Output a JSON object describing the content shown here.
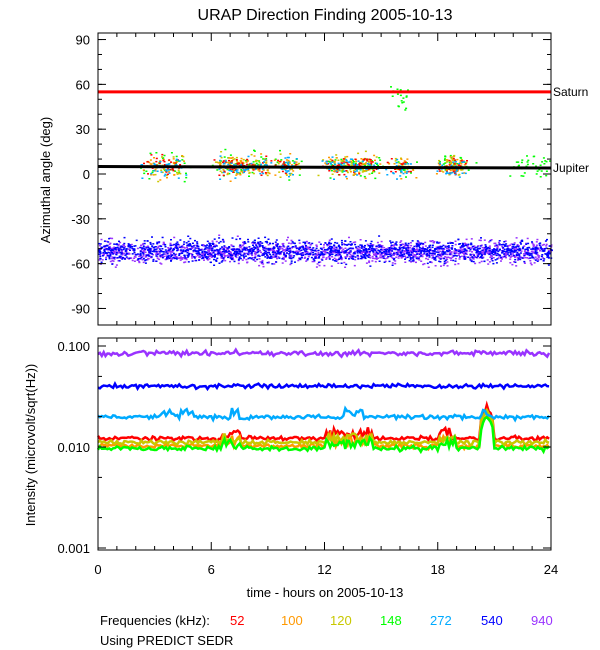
{
  "chart_data": [
    {
      "type": "scatter",
      "title": "URAP Direction Finding  2005-10-13",
      "xlabel": "",
      "ylabel": "Azimuthal angle (deg)",
      "xlim": [
        0,
        24
      ],
      "ylim": [
        -95,
        95
      ],
      "yticks": [
        "90",
        "60",
        "30",
        "0",
        "-30",
        "-60",
        "-90"
      ],
      "ytick_values": [
        90,
        60,
        30,
        0,
        -30,
        -60,
        -90
      ],
      "reference_lines": [
        {
          "name": "Saturn",
          "value_start": 55,
          "value_end": 55,
          "color": "#ff0000"
        },
        {
          "name": "Jupiter",
          "value_start": 5,
          "value_end": 4,
          "color": "#000000"
        }
      ],
      "clusters": [
        {
          "frequency": "940",
          "center": -52,
          "spread": 6,
          "x_range": [
            0,
            24
          ]
        },
        {
          "frequency": "540",
          "center": -51,
          "spread": 6,
          "x_range": [
            0,
            24
          ]
        },
        {
          "frequency": "148",
          "center": 6,
          "spread": 6,
          "x_range": [
            2.5,
            24
          ]
        },
        {
          "frequency": "120",
          "center": 6,
          "spread": 6,
          "x_range": [
            2.5,
            20
          ]
        },
        {
          "frequency": "100",
          "center": 6,
          "spread": 6,
          "x_range": [
            2.5,
            20
          ]
        },
        {
          "frequency": "52",
          "center": 6,
          "spread": 5,
          "x_range": [
            2.5,
            19
          ]
        },
        {
          "frequency": "272",
          "center": 5,
          "spread": 5,
          "x_range": [
            2.5,
            19
          ]
        },
        {
          "frequency": "148",
          "center": 50,
          "spread": 8,
          "x_range": [
            14.5,
            17
          ]
        }
      ]
    },
    {
      "type": "line",
      "xlabel": "time - hours on 2005-10-13",
      "ylabel": "Intensity (microvolt/sqrt(Hz))",
      "yscale": "log",
      "xlim": [
        0,
        24
      ],
      "ylim": [
        0.001,
        0.1
      ],
      "xticks": [
        "0",
        "6",
        "12",
        "18",
        "24"
      ],
      "xtick_values": [
        0,
        6,
        12,
        18,
        24
      ],
      "yticks": [
        "0.100",
        "0.010",
        "0.001"
      ],
      "ytick_values": [
        0.1,
        0.01,
        0.001
      ],
      "series": [
        {
          "name": "52",
          "level": 0.0122,
          "color": "#ff0000"
        },
        {
          "name": "100",
          "level": 0.0103,
          "color": "#ff9900"
        },
        {
          "name": "120",
          "level": 0.0111,
          "color": "#c8c800"
        },
        {
          "name": "148",
          "level": 0.0097,
          "color": "#00ff00"
        },
        {
          "name": "272",
          "level": 0.0198,
          "color": "#00aaff"
        },
        {
          "name": "540",
          "level": 0.04,
          "color": "#0000ff"
        },
        {
          "name": "940",
          "level": 0.085,
          "color": "#9933ff"
        }
      ]
    }
  ],
  "legend": {
    "label": "Frequencies (kHz):",
    "items": [
      {
        "text": "52",
        "color": "#ff0000"
      },
      {
        "text": "100",
        "color": "#ff9900"
      },
      {
        "text": "120",
        "color": "#c8c800"
      },
      {
        "text": "148",
        "color": "#00ff00"
      },
      {
        "text": "272",
        "color": "#00aaff"
      },
      {
        "text": "540",
        "color": "#0000ff"
      },
      {
        "text": "940",
        "color": "#9933ff"
      }
    ]
  },
  "footer": "Using PREDICT SEDR"
}
